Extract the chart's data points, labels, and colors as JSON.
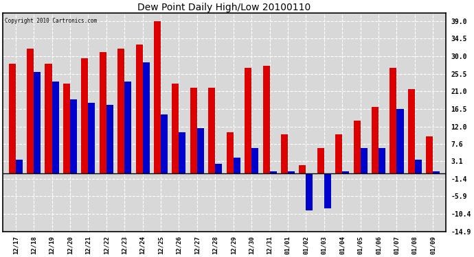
{
  "title": "Dew Point Daily High/Low 20100110",
  "copyright": "Copyright 2010 Cartronics.com",
  "dates": [
    "12/17",
    "12/18",
    "12/19",
    "12/20",
    "12/21",
    "12/22",
    "12/23",
    "12/24",
    "12/25",
    "12/26",
    "12/27",
    "12/28",
    "12/29",
    "12/30",
    "12/31",
    "01/01",
    "01/02",
    "01/03",
    "01/04",
    "01/05",
    "01/06",
    "01/07",
    "01/08",
    "01/09"
  ],
  "highs": [
    28.0,
    32.0,
    28.0,
    23.0,
    29.5,
    31.0,
    32.0,
    33.0,
    39.0,
    23.0,
    22.0,
    22.0,
    10.5,
    27.0,
    27.5,
    10.0,
    2.0,
    6.5,
    10.0,
    13.5,
    17.0,
    27.0,
    21.5,
    9.5
  ],
  "lows": [
    3.5,
    26.0,
    23.5,
    19.0,
    18.0,
    17.5,
    23.5,
    28.5,
    15.0,
    10.5,
    11.5,
    2.5,
    4.0,
    6.5,
    0.5,
    0.5,
    -9.5,
    -9.0,
    0.5,
    6.5,
    6.5,
    16.5,
    3.5,
    0.5
  ],
  "high_color": "#dd0000",
  "low_color": "#0000cc",
  "bg_color": "#ffffff",
  "plot_bg": "#d8d8d8",
  "yticks": [
    39.0,
    34.5,
    30.0,
    25.5,
    21.0,
    16.5,
    12.0,
    7.6,
    3.1,
    -1.4,
    -5.9,
    -10.4,
    -14.9
  ],
  "ylim": [
    -14.9,
    41.0
  ],
  "grid_color": "#ffffff",
  "bar_width": 0.38
}
